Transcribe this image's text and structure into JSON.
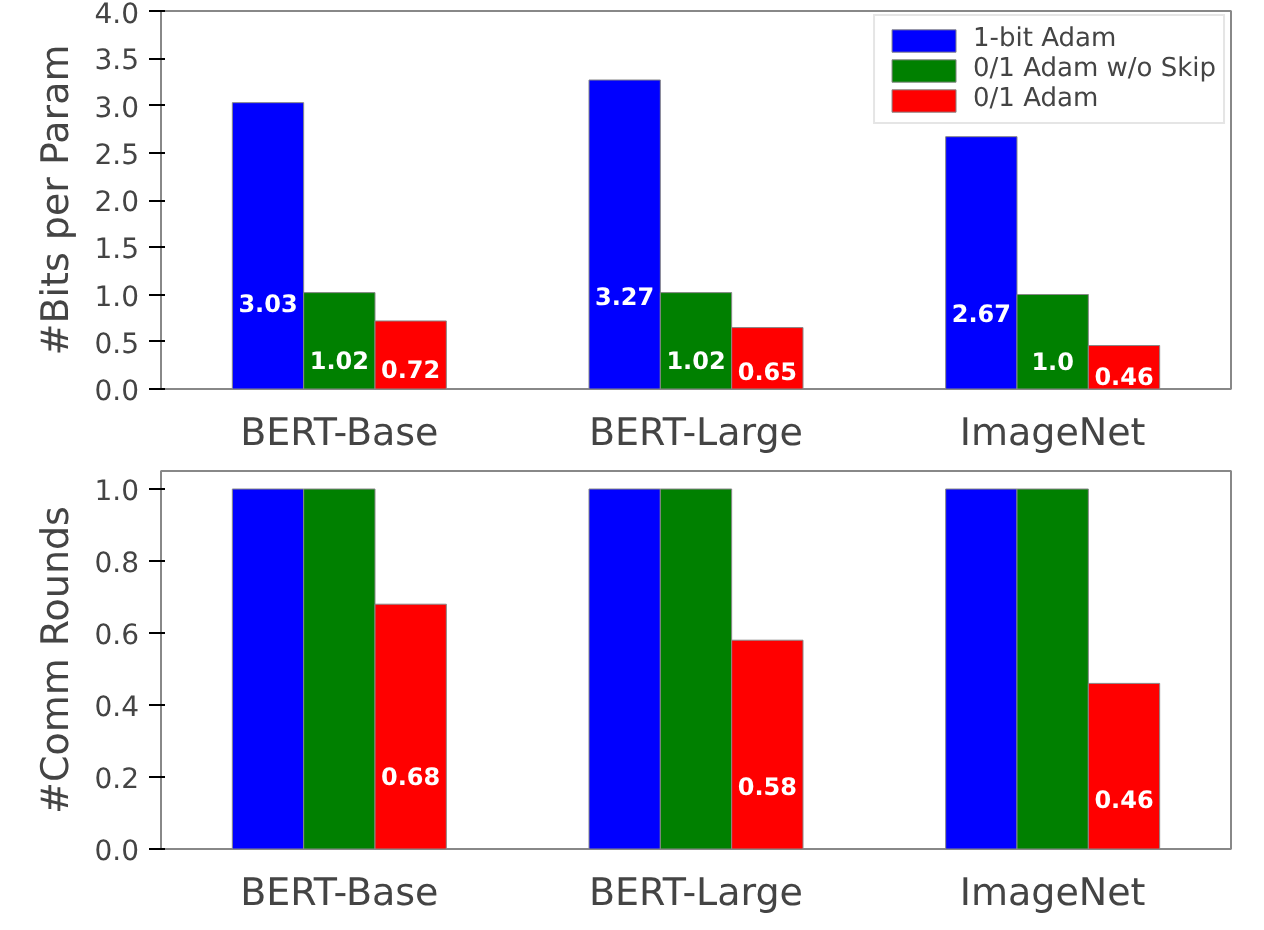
{
  "chart_data": [
    {
      "type": "bar",
      "ylabel": "#Bits per Param",
      "categories": [
        "BERT-Base",
        "BERT-Large",
        "ImageNet"
      ],
      "ylim": [
        0,
        4.0
      ],
      "yticks": [
        {
          "value": 0,
          "label": "0.0"
        },
        0.5,
        {
          "value": 1,
          "label": "1.0"
        },
        1.5,
        {
          "value": 2,
          "label": "2.0"
        },
        2.5,
        {
          "value": 3,
          "label": "3.0"
        },
        3.5,
        {
          "value": 4,
          "label": "4.0"
        }
      ],
      "legend": "top right",
      "series": [
        {
          "name": "1-bit Adam",
          "color": "#0000ff",
          "values": [
            3.03,
            3.27,
            2.67
          ],
          "value_labels": [
            "3.03",
            "3.27",
            "2.67"
          ]
        },
        {
          "name": "0/1 Adam w/o Skip",
          "color": "#008000",
          "values": [
            1.02,
            1.02,
            1.0
          ],
          "value_labels": [
            "1.02",
            "1.02",
            "1.0"
          ]
        },
        {
          "name": "0/1 Adam",
          "color": "#ff0000",
          "values": [
            0.72,
            0.65,
            0.46
          ],
          "value_labels": [
            "0.72",
            "0.65",
            "0.46"
          ]
        }
      ]
    },
    {
      "type": "bar",
      "ylabel": "#Comm Rounds",
      "categories": [
        "BERT-Base",
        "BERT-Large",
        "ImageNet"
      ],
      "ylim": [
        0,
        1.05
      ],
      "yticks": [
        {
          "value": 0,
          "label": "0.0"
        },
        0.2,
        0.4,
        0.6,
        0.8,
        {
          "value": 1,
          "label": "1.0"
        }
      ],
      "series": [
        {
          "color": "#0000ff",
          "values": [
            1,
            1,
            1
          ]
        },
        {
          "color": "#008000",
          "values": [
            1,
            1,
            1
          ]
        },
        {
          "color": "#ff0000",
          "values": [
            0.68,
            0.58,
            0.46
          ],
          "value_labels": [
            "0.68",
            "0.58",
            "0.46"
          ]
        }
      ]
    }
  ]
}
